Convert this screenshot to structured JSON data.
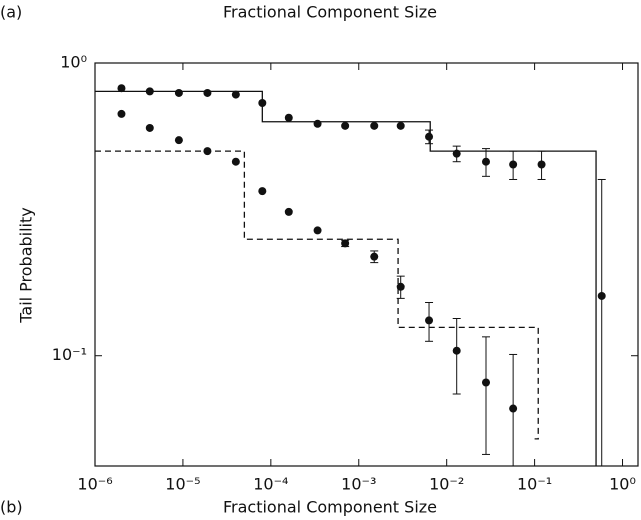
{
  "chart_data": [
    {
      "type": "scatter",
      "panel_label": "(a)",
      "xlabel": "Fractional Component Size"
    },
    {
      "type": "scatter",
      "panel_label": "(b)",
      "xlabel": "Fractional Component Size",
      "ylabel": "Tail Probability",
      "xscale": "log",
      "yscale": "log",
      "xlim": [
        1e-06,
        1.5
      ],
      "ylim": [
        0.042,
        1
      ],
      "xticks": [
        {
          "value": 1e-06,
          "label": "10⁻⁶"
        },
        {
          "value": 1e-05,
          "label": "10⁻⁵"
        },
        {
          "value": 0.0001,
          "label": "10⁻⁴"
        },
        {
          "value": 0.001,
          "label": "10⁻³"
        },
        {
          "value": 0.01,
          "label": "10⁻²"
        },
        {
          "value": 0.1,
          "label": "10⁻¹"
        },
        {
          "value": 1,
          "label": "10⁰"
        }
      ],
      "yticks": [
        {
          "value": 0.1,
          "label": "10⁻¹"
        },
        {
          "value": 1,
          "label": "10⁰"
        }
      ],
      "series": [
        {
          "color": "#111111",
          "x": [
            2e-06,
            4.2e-06,
            9e-06,
            1.9e-05,
            4e-05,
            8e-05,
            0.00016,
            0.00034,
            0.0007,
            0.0015,
            0.003,
            0.0063,
            0.013,
            0.028,
            0.057,
            0.12,
            0.58
          ],
          "values": [
            0.82,
            0.8,
            0.79,
            0.79,
            0.78,
            0.73,
            0.65,
            0.62,
            0.61,
            0.61,
            0.61,
            0.56,
            0.49,
            0.46,
            0.45,
            0.45,
            0.16
          ],
          "errors": [
            0,
            0,
            0,
            0,
            0,
            0,
            0,
            0,
            0,
            0,
            0,
            0.03,
            0.03,
            0.05,
            0.05,
            0.05,
            0.24
          ]
        },
        {
          "color": "#111111",
          "x": [
            2e-06,
            4.2e-06,
            9e-06,
            1.9e-05,
            4e-05,
            8e-05,
            0.00016,
            0.00034,
            0.0007,
            0.0015,
            0.003,
            0.0063,
            0.013,
            0.028,
            0.057
          ],
          "values": [
            0.67,
            0.6,
            0.545,
            0.5,
            0.46,
            0.365,
            0.31,
            0.268,
            0.242,
            0.218,
            0.172,
            0.132,
            0.104,
            0.081,
            0.066
          ],
          "errors": [
            0,
            0,
            0,
            0,
            0,
            0,
            0,
            0,
            0.006,
            0.01,
            0.015,
            0.02,
            0.03,
            0.035,
            0.035
          ]
        }
      ],
      "lines": [
        {
          "style": "solid",
          "color": "#111111",
          "x": [
            1e-06,
            8e-05,
            8e-05,
            0.0065,
            0.0065,
            0.5,
            0.5
          ],
          "values": [
            0.8,
            0.8,
            0.63,
            0.63,
            0.5,
            0.5,
            0.042
          ]
        },
        {
          "style": "dashed",
          "color": "#111111",
          "x": [
            1e-06,
            5e-05,
            5e-05,
            0.0028,
            0.0028,
            0.11,
            0.11,
            0.1
          ],
          "values": [
            0.5,
            0.5,
            0.25,
            0.25,
            0.125,
            0.125,
            0.052,
            0.052
          ]
        }
      ]
    }
  ]
}
